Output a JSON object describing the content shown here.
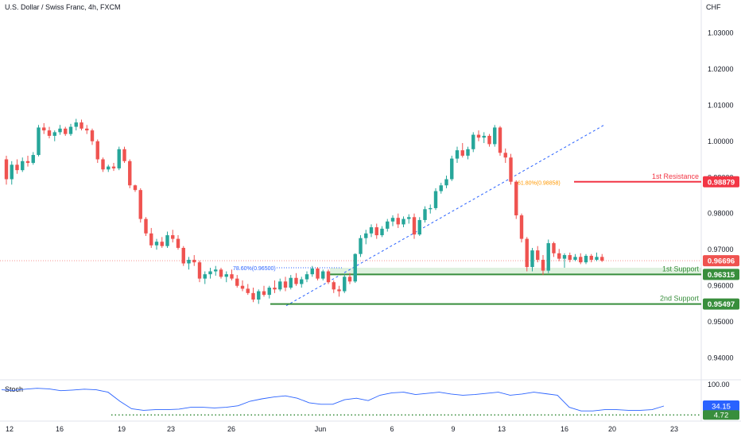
{
  "header": {
    "title": "U.S. Dollar / Swiss Franc, 4h, FXCM",
    "currency": "CHF"
  },
  "stoch": {
    "label": "Stoch",
    "k_value_label": "34.15",
    "d_value_label": "4.72",
    "top_label": "100.00"
  },
  "annotations": {
    "resistance_label": "1st Resistance",
    "resistance_value": "0.98879",
    "support1_label": "1st Support",
    "support1_value": "0.96315",
    "support2_label": "2nd Support",
    "support2_value": "0.95497",
    "current_price_value": "0.96696",
    "fib_786_label": "78.60%(0.96500)",
    "fib_618_label": "61.80%(0.98858)"
  },
  "colors": {
    "up": "#26a69a",
    "down": "#ef5350",
    "resistance": "#f23645",
    "support": "#388e3c",
    "stoch_line": "#2962ff",
    "fib": "#2962ff",
    "fib_618": "#ff9800"
  },
  "chart_data": {
    "type": "candlestick",
    "symbol": "U.S. Dollar / Swiss Franc, 4h, FXCM",
    "ylim": [
      0.934,
      1.036
    ],
    "y_ticks": [
      "1.03000",
      "1.02000",
      "1.01000",
      "1.00000",
      "0.99000",
      "0.98000",
      "0.97000",
      "0.96000",
      "0.95000",
      "0.94000"
    ],
    "x_ticks": [
      "12",
      "16",
      "19",
      "23",
      "26",
      "Jun",
      "6",
      "9",
      "13",
      "16",
      "20",
      "23"
    ],
    "levels": {
      "first_resistance": 0.98879,
      "first_support": 0.96315,
      "second_support": 0.95497,
      "current_price": 0.96696,
      "fib_786": 0.965,
      "fib_618": 0.98858
    },
    "candles": [
      [
        0.995,
        0.996,
        0.988,
        0.9895
      ],
      [
        0.9895,
        0.9945,
        0.988,
        0.9935
      ],
      [
        0.9935,
        0.995,
        0.991,
        0.992
      ],
      [
        0.992,
        0.9955,
        0.9915,
        0.9945
      ],
      [
        0.9945,
        0.996,
        0.993,
        0.994
      ],
      [
        0.994,
        0.997,
        0.9935,
        0.9962
      ],
      [
        0.9962,
        1.0045,
        0.9958,
        1.0038
      ],
      [
        1.0038,
        1.005,
        1.002,
        1.003
      ],
      [
        1.003,
        1.004,
        1.0008,
        1.0015
      ],
      [
        1.0015,
        1.003,
        1.0,
        1.0025
      ],
      [
        1.0025,
        1.0045,
        1.0018,
        1.0035
      ],
      [
        1.0035,
        1.004,
        1.0015,
        1.002
      ],
      [
        1.002,
        1.0048,
        1.0015,
        1.004
      ],
      [
        1.004,
        1.0062,
        1.003,
        1.0052
      ],
      [
        1.0052,
        1.006,
        1.003,
        1.0035
      ],
      [
        1.0035,
        1.0045,
        1.002,
        1.003
      ],
      [
        1.003,
        1.0035,
        0.999,
        1.0
      ],
      [
        1.0,
        1.0005,
        0.994,
        0.995
      ],
      [
        0.995,
        0.9955,
        0.9915,
        0.9922
      ],
      [
        0.9922,
        0.9935,
        0.9915,
        0.993
      ],
      [
        0.993,
        0.994,
        0.9918,
        0.9925
      ],
      [
        0.9925,
        0.9985,
        0.992,
        0.9978
      ],
      [
        0.9978,
        0.9985,
        0.994,
        0.9945
      ],
      [
        0.9945,
        0.995,
        0.987,
        0.9878
      ],
      [
        0.9878,
        0.988,
        0.986,
        0.9865
      ],
      [
        0.9865,
        0.987,
        0.9775,
        0.9785
      ],
      [
        0.9785,
        0.979,
        0.9738,
        0.9745
      ],
      [
        0.9745,
        0.976,
        0.9705,
        0.9712
      ],
      [
        0.9712,
        0.973,
        0.97,
        0.9722
      ],
      [
        0.9722,
        0.9735,
        0.9705,
        0.971
      ],
      [
        0.971,
        0.975,
        0.9705,
        0.974
      ],
      [
        0.974,
        0.9755,
        0.972,
        0.973
      ],
      [
        0.973,
        0.974,
        0.97,
        0.9705
      ],
      [
        0.9705,
        0.971,
        0.9655,
        0.9662
      ],
      [
        0.9662,
        0.968,
        0.9645,
        0.9672
      ],
      [
        0.9672,
        0.9685,
        0.9655,
        0.9665
      ],
      [
        0.9665,
        0.967,
        0.961,
        0.962
      ],
      [
        0.962,
        0.964,
        0.9605,
        0.9632
      ],
      [
        0.9632,
        0.965,
        0.962,
        0.964
      ],
      [
        0.964,
        0.9655,
        0.9628,
        0.9645
      ],
      [
        0.9645,
        0.965,
        0.962,
        0.9625
      ],
      [
        0.9625,
        0.964,
        0.961,
        0.9632
      ],
      [
        0.9632,
        0.9645,
        0.9615,
        0.962
      ],
      [
        0.962,
        0.963,
        0.9595,
        0.96
      ],
      [
        0.96,
        0.9615,
        0.9585,
        0.9592
      ],
      [
        0.9592,
        0.9605,
        0.9575,
        0.958
      ],
      [
        0.958,
        0.9595,
        0.9555,
        0.9562
      ],
      [
        0.9562,
        0.959,
        0.955,
        0.9585
      ],
      [
        0.9585,
        0.96,
        0.957,
        0.9575
      ],
      [
        0.9575,
        0.96,
        0.9565,
        0.9595
      ],
      [
        0.9595,
        0.9615,
        0.958,
        0.959
      ],
      [
        0.959,
        0.962,
        0.9585,
        0.9612
      ],
      [
        0.9612,
        0.9625,
        0.9585,
        0.9595
      ],
      [
        0.9595,
        0.963,
        0.959,
        0.9622
      ],
      [
        0.9622,
        0.9635,
        0.96,
        0.9605
      ],
      [
        0.9605,
        0.9625,
        0.9595,
        0.9618
      ],
      [
        0.9618,
        0.964,
        0.961,
        0.9632
      ],
      [
        0.9632,
        0.9655,
        0.9625,
        0.9648
      ],
      [
        0.9648,
        0.9652,
        0.9615,
        0.962
      ],
      [
        0.962,
        0.9645,
        0.9615,
        0.964
      ],
      [
        0.964,
        0.9645,
        0.9605,
        0.961
      ],
      [
        0.961,
        0.9615,
        0.958,
        0.959
      ],
      [
        0.959,
        0.96,
        0.957,
        0.9585
      ],
      [
        0.9585,
        0.9632,
        0.958,
        0.9625
      ],
      [
        0.9625,
        0.9635,
        0.9605,
        0.9612
      ],
      [
        0.9612,
        0.969,
        0.9608,
        0.9688
      ],
      [
        0.9688,
        0.974,
        0.968,
        0.9732
      ],
      [
        0.9732,
        0.9755,
        0.9715,
        0.9745
      ],
      [
        0.9745,
        0.977,
        0.9735,
        0.9762
      ],
      [
        0.9762,
        0.9772,
        0.973,
        0.974
      ],
      [
        0.974,
        0.9765,
        0.9735,
        0.9758
      ],
      [
        0.9758,
        0.9785,
        0.975,
        0.9778
      ],
      [
        0.9778,
        0.9795,
        0.9765,
        0.9788
      ],
      [
        0.9788,
        0.98,
        0.976,
        0.977
      ],
      [
        0.977,
        0.9792,
        0.9762,
        0.9785
      ],
      [
        0.9785,
        0.9798,
        0.9772,
        0.979
      ],
      [
        0.979,
        0.98,
        0.973,
        0.9742
      ],
      [
        0.9742,
        0.979,
        0.9738,
        0.9782
      ],
      [
        0.9782,
        0.982,
        0.9775,
        0.9812
      ],
      [
        0.9812,
        0.9825,
        0.98,
        0.9815
      ],
      [
        0.9815,
        0.987,
        0.981,
        0.9862
      ],
      [
        0.9862,
        0.9885,
        0.9855,
        0.9878
      ],
      [
        0.9878,
        0.9905,
        0.987,
        0.9895
      ],
      [
        0.9895,
        0.996,
        0.989,
        0.9952
      ],
      [
        0.9952,
        0.9985,
        0.994,
        0.9975
      ],
      [
        0.9975,
        0.9995,
        0.9955,
        0.996
      ],
      [
        0.996,
        0.9985,
        0.995,
        0.9978
      ],
      [
        0.9978,
        1.0025,
        0.997,
        1.0018
      ],
      [
        1.0018,
        1.003,
        1.0,
        1.001
      ],
      [
        1.001,
        1.0025,
        0.9995,
        1.0015
      ],
      [
        1.0015,
        1.002,
        0.9985,
        0.9992
      ],
      [
        0.9992,
        1.0045,
        0.9985,
        1.0038
      ],
      [
        1.0038,
        1.0042,
        0.996,
        0.9968
      ],
      [
        0.9968,
        0.998,
        0.994,
        0.9955
      ],
      [
        0.9955,
        0.9965,
        0.988,
        0.9888
      ],
      [
        0.9888,
        0.9892,
        0.9785,
        0.9795
      ],
      [
        0.9795,
        0.98,
        0.972,
        0.973
      ],
      [
        0.973,
        0.9735,
        0.964,
        0.9652
      ],
      [
        0.9652,
        0.9705,
        0.964,
        0.9698
      ],
      [
        0.9698,
        0.971,
        0.9665,
        0.9672
      ],
      [
        0.9672,
        0.9685,
        0.963,
        0.9642
      ],
      [
        0.9642,
        0.9728,
        0.9635,
        0.9718
      ],
      [
        0.9718,
        0.9722,
        0.968,
        0.969
      ],
      [
        0.969,
        0.9702,
        0.9668,
        0.9675
      ],
      [
        0.9675,
        0.969,
        0.965,
        0.9685
      ],
      [
        0.9685,
        0.9692,
        0.9665,
        0.9672
      ],
      [
        0.9672,
        0.9688,
        0.9668,
        0.968
      ],
      [
        0.968,
        0.969,
        0.966,
        0.9665
      ],
      [
        0.9665,
        0.9688,
        0.966,
        0.9683
      ],
      [
        0.9683,
        0.9688,
        0.9665,
        0.9672
      ],
      [
        0.9672,
        0.9692,
        0.9668,
        0.968
      ],
      [
        0.968,
        0.9688,
        0.9666,
        0.96696
      ]
    ],
    "stochastic": {
      "k": [
        88,
        86,
        90,
        93,
        91,
        85,
        87,
        90,
        88,
        80,
        50,
        25,
        20,
        22,
        22,
        24,
        30,
        30,
        28,
        30,
        35,
        50,
        58,
        64,
        68,
        60,
        45,
        40,
        40,
        55,
        60,
        52,
        70,
        78,
        80,
        72,
        76,
        80,
        74,
        70,
        72,
        76,
        80,
        70,
        74,
        80,
        75,
        70,
        30,
        18,
        18,
        22,
        22,
        20,
        20,
        22,
        34.15
      ],
      "d_level": 4.72
    }
  }
}
